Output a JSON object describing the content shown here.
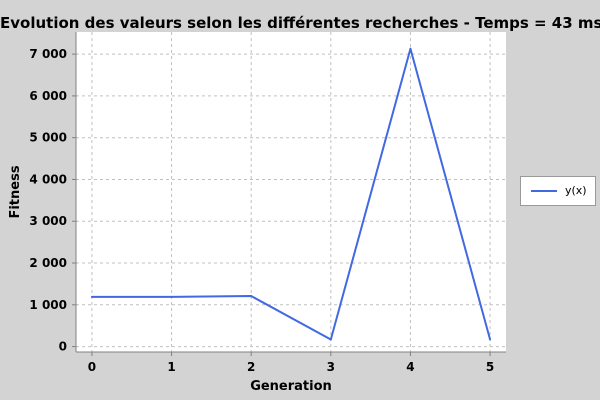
{
  "chart_data": {
    "type": "line",
    "title": "Evolution des valeurs selon les différentes recherches - Temps = 43 ms",
    "xlabel": "Generation",
    "ylabel": "Fitness",
    "x": [
      0,
      1,
      2,
      3,
      4,
      5
    ],
    "series": [
      {
        "name": "y(x)",
        "color": "#4169e1",
        "values": [
          1190,
          1190,
          1210,
          170,
          7130,
          170
        ]
      }
    ],
    "xlim": [
      -0.2,
      5.2
    ],
    "ylim": [
      -130,
      7530
    ],
    "x_ticks": [
      0,
      1,
      2,
      3,
      4,
      5
    ],
    "x_tick_labels": [
      "0",
      "1",
      "2",
      "3",
      "4",
      "5"
    ],
    "y_ticks": [
      0,
      1000,
      2000,
      3000,
      4000,
      5000,
      6000,
      7000
    ],
    "y_tick_labels": [
      "0",
      "1 000",
      "2 000",
      "3 000",
      "4 000",
      "5 000",
      "6 000",
      "7 000"
    ],
    "grid": true,
    "legend_position": "right",
    "colors": {
      "plot_background": "#ffffff",
      "page_background": "#d3d3d3",
      "grid": "#c0c0c0"
    }
  }
}
